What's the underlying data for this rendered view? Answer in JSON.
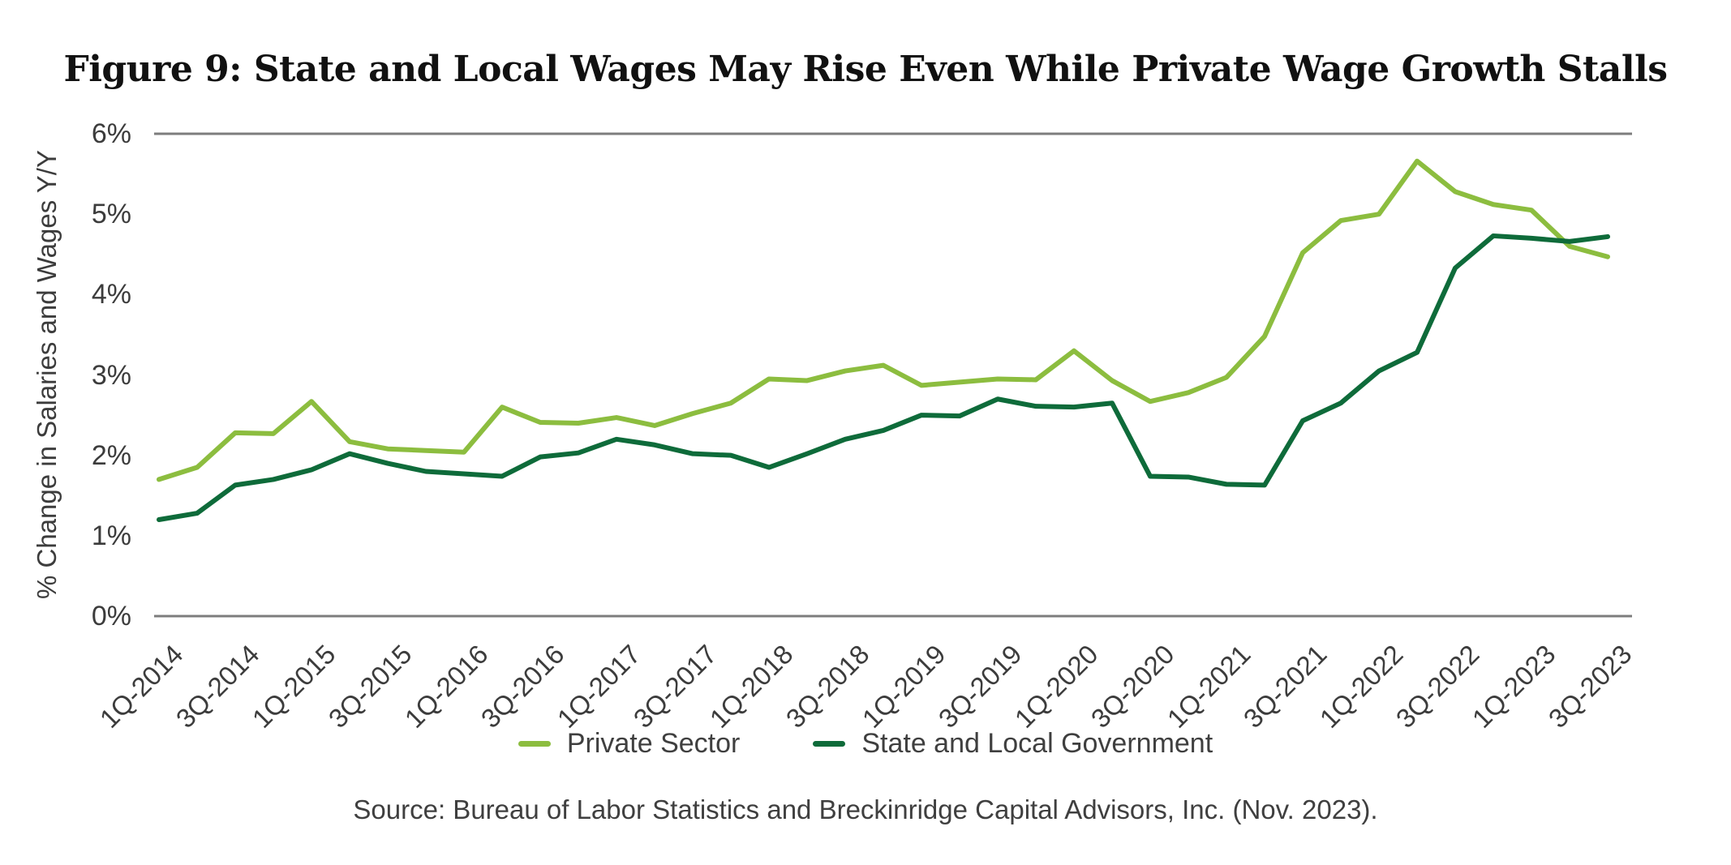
{
  "title": "Figure 9: State and Local Wages May Rise Even While Private Wage Growth Stalls",
  "source": "Source: Bureau of Labor Statistics and Breckinridge Capital Advisors, Inc. (Nov. 2023).",
  "chart_data": {
    "type": "line",
    "title": "Figure 9: State and Local Wages May Rise Even While Private Wage Growth Stalls",
    "xlabel": "",
    "ylabel": "% Change in Salaries and Wages Y/Y",
    "ylim": [
      0,
      6
    ],
    "y_tick_labels": [
      "0%",
      "1%",
      "2%",
      "3%",
      "4%",
      "5%",
      "6%"
    ],
    "gridlines_at_percent": [
      6,
      0
    ],
    "grid": "top-and-bottom-only",
    "legend_position": "bottom-center",
    "x_tick_labels": [
      "1Q-2014",
      "3Q-2014",
      "1Q-2015",
      "3Q-2015",
      "1Q-2016",
      "3Q-2016",
      "1Q-2017",
      "3Q-2017",
      "1Q-2018",
      "3Q-2018",
      "1Q-2019",
      "3Q-2019",
      "1Q-2020",
      "3Q-2020",
      "1Q-2021",
      "3Q-2021",
      "1Q-2022",
      "3Q-2022",
      "1Q-2023",
      "3Q-2023"
    ],
    "categories": [
      "1Q-2014",
      "2Q-2014",
      "3Q-2014",
      "4Q-2014",
      "1Q-2015",
      "2Q-2015",
      "3Q-2015",
      "4Q-2015",
      "1Q-2016",
      "2Q-2016",
      "3Q-2016",
      "4Q-2016",
      "1Q-2017",
      "2Q-2017",
      "3Q-2017",
      "4Q-2017",
      "1Q-2018",
      "2Q-2018",
      "3Q-2018",
      "4Q-2018",
      "1Q-2019",
      "2Q-2019",
      "3Q-2019",
      "4Q-2019",
      "1Q-2020",
      "2Q-2020",
      "3Q-2020",
      "4Q-2020",
      "1Q-2021",
      "2Q-2021",
      "3Q-2021",
      "4Q-2021",
      "1Q-2022",
      "2Q-2022",
      "3Q-2022",
      "4Q-2022",
      "1Q-2023",
      "2Q-2023",
      "3Q-2023"
    ],
    "series": [
      {
        "name": "Private Sector",
        "color": "#8CBD3F",
        "values": [
          1.7,
          1.85,
          2.28,
          2.27,
          2.67,
          2.17,
          2.08,
          2.06,
          2.04,
          2.6,
          2.41,
          2.4,
          2.47,
          2.37,
          2.52,
          2.65,
          2.95,
          2.93,
          3.05,
          3.12,
          2.87,
          2.91,
          2.95,
          2.94,
          3.3,
          2.93,
          2.67,
          2.78,
          2.97,
          3.48,
          4.52,
          4.92,
          5.0,
          5.66,
          5.28,
          5.12,
          5.05,
          4.6,
          4.47
        ]
      },
      {
        "name": "State and Local Government",
        "color": "#0E6B3A",
        "values": [
          1.2,
          1.28,
          1.63,
          1.7,
          1.82,
          2.02,
          1.9,
          1.8,
          1.77,
          1.74,
          1.98,
          2.03,
          2.2,
          2.13,
          2.02,
          2.0,
          1.85,
          2.02,
          2.2,
          2.31,
          2.5,
          2.49,
          2.7,
          2.61,
          2.6,
          2.65,
          1.74,
          1.73,
          1.64,
          1.63,
          2.43,
          2.65,
          3.05,
          3.28,
          4.33,
          4.73,
          4.7,
          4.66,
          4.72
        ]
      }
    ],
    "axis_color": "#7d7d7d"
  }
}
